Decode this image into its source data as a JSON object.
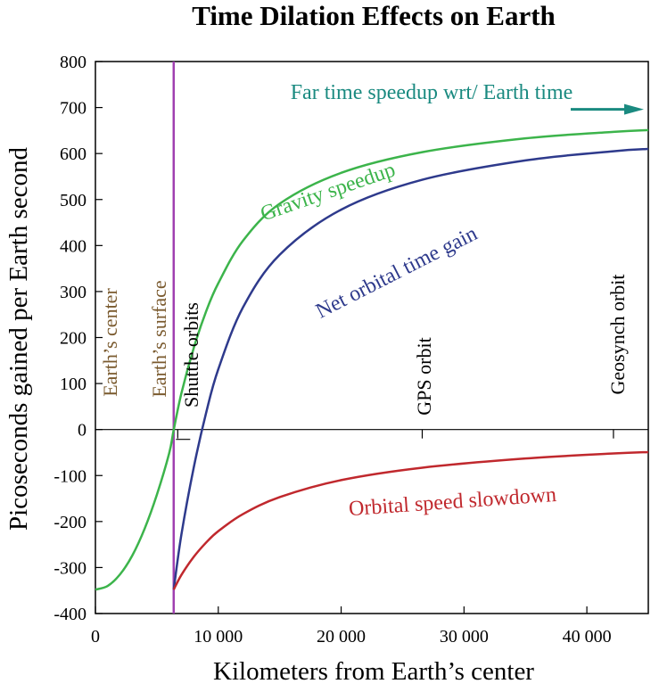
{
  "chart_data": {
    "type": "line",
    "title": "Time Dilation Effects on Earth",
    "xlabel": "Kilometers from Earth’s center",
    "ylabel": "Picoseconds gained per Earth second",
    "xlim": [
      0,
      45000
    ],
    "ylim": [
      -400,
      800
    ],
    "x_ticks": [
      0,
      10000,
      20000,
      30000,
      40000
    ],
    "x_tick_labels": [
      "0",
      "10 000",
      "20 000",
      "30 000",
      "40 000"
    ],
    "y_ticks": [
      800,
      700,
      600,
      500,
      400,
      300,
      200,
      100,
      0,
      -100,
      -200,
      -300,
      -400
    ],
    "y_tick_labels": [
      "800",
      "700",
      "600",
      "500",
      "400",
      "300",
      "200",
      "100",
      "0",
      "-100",
      "-200",
      "-300",
      "-400"
    ],
    "grid": false,
    "series": [
      {
        "name": "Gravity speedup",
        "color": "#3cb44b",
        "label_text": "Gravity speedup",
        "x": [
          0,
          1000,
          2000,
          3000,
          4000,
          5000,
          6000,
          6371,
          7000,
          8000,
          9000,
          10000,
          12000,
          15000,
          20000,
          26600,
          35000,
          42164,
          45000
        ],
        "y": [
          -348,
          -340,
          -315,
          -274,
          -216,
          -142,
          -52,
          -1,
          79,
          177,
          256,
          318,
          410,
          491,
          558,
          603,
          633,
          647,
          651
        ]
      },
      {
        "name": "Net orbital time gain",
        "color": "#2e3a8c",
        "label_text": "Net orbital time gain",
        "x": [
          6371,
          7000,
          8000,
          9000,
          10000,
          12000,
          15000,
          20000,
          26600,
          35000,
          42164,
          45000
        ],
        "y": [
          -348,
          -228,
          -83,
          35,
          131,
          265,
          380,
          478,
          543,
          585,
          605,
          610
        ]
      },
      {
        "name": "Orbital speed slowdown",
        "color": "#c0282d",
        "label_text": "Orbital speed slowdown",
        "x": [
          6371,
          7000,
          8000,
          9000,
          10000,
          12000,
          15000,
          20000,
          26600,
          35000,
          42164,
          45000
        ],
        "y": [
          -348,
          -316,
          -277,
          -246,
          -221,
          -184,
          -147,
          -110,
          -83,
          -63,
          -52,
          -49
        ]
      }
    ],
    "markers": [
      {
        "label": "Earth’s center",
        "x": 0,
        "color": "#7a5a2e"
      },
      {
        "label": "Earth’s surface",
        "x": 6371,
        "color": "#7a5a2e"
      },
      {
        "label": "Shuttle orbits",
        "x": 6700,
        "color": "#000000"
      },
      {
        "label": "GPS orbit",
        "x": 26600,
        "color": "#000000"
      },
      {
        "label": "Geosynch orbit",
        "x": 42164,
        "color": "#000000"
      }
    ],
    "annotation": {
      "text": "Far time speedup wrt/ Earth time",
      "color": "#1a8a80",
      "arrow": "right",
      "value": 700
    },
    "surface_line": {
      "x": 6371,
      "color": "#a040b0"
    }
  }
}
